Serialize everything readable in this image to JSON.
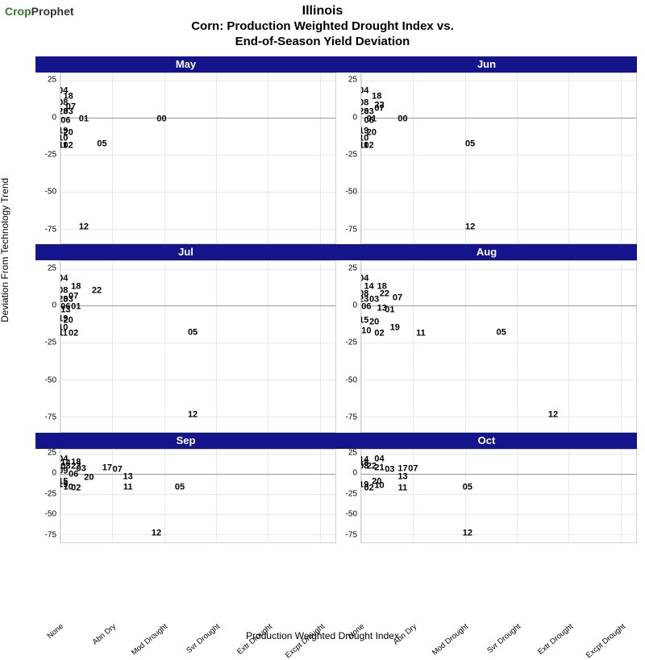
{
  "logo": {
    "part1": "Crop",
    "part2": "Prophet"
  },
  "title": {
    "line1": "Illinois",
    "line2": "Corn: Production Weighted Drought Index vs.",
    "line3": "End-of-Season Yield Deviation"
  },
  "axes": {
    "y_label": "Deviation From Technology Trend",
    "x_label": "Production Weighted Drought Index",
    "y_ticks": [
      25,
      0,
      -25,
      -50,
      -75
    ],
    "y_range": [
      -85,
      30
    ],
    "x_categories": [
      "None",
      "Abn Dry",
      "Mod Drought",
      "Svr Drought",
      "Extr Drought",
      "Excpt Drought"
    ],
    "x_range": [
      0,
      5.3
    ]
  },
  "style": {
    "strip_bg": "#14148c",
    "strip_fg": "#ffffff",
    "grid_color": "#e8e8e8",
    "zero_line": "#999999",
    "point_color": "#000000",
    "point_fontsize": 11,
    "background": "#ffffff"
  },
  "facets": [
    {
      "label": "May",
      "last_row": false,
      "points": [
        {
          "lbl": "04",
          "x": 0.05,
          "y": 18
        },
        {
          "lbl": "18",
          "x": 0.15,
          "y": 14
        },
        {
          "lbl": "08",
          "x": 0.05,
          "y": 10
        },
        {
          "lbl": "07",
          "x": 0.2,
          "y": 7
        },
        {
          "lbl": "23",
          "x": 0.05,
          "y": 4
        },
        {
          "lbl": "03",
          "x": 0.15,
          "y": 4
        },
        {
          "lbl": "06",
          "x": 0.1,
          "y": -2
        },
        {
          "lbl": "01",
          "x": 0.45,
          "y": -1
        },
        {
          "lbl": "00",
          "x": 1.95,
          "y": -1
        },
        {
          "lbl": "19",
          "x": 0.05,
          "y": -9
        },
        {
          "lbl": "20",
          "x": 0.15,
          "y": -10
        },
        {
          "lbl": "10",
          "x": 0.05,
          "y": -14
        },
        {
          "lbl": "11",
          "x": 0.05,
          "y": -19
        },
        {
          "lbl": "02",
          "x": 0.15,
          "y": -19
        },
        {
          "lbl": "05",
          "x": 0.8,
          "y": -18
        },
        {
          "lbl": "12",
          "x": 0.45,
          "y": -74
        }
      ]
    },
    {
      "label": "Jun",
      "last_row": false,
      "points": [
        {
          "lbl": "04",
          "x": 0.05,
          "y": 18
        },
        {
          "lbl": "18",
          "x": 0.3,
          "y": 14
        },
        {
          "lbl": "08",
          "x": 0.05,
          "y": 10
        },
        {
          "lbl": "22",
          "x": 0.35,
          "y": 8
        },
        {
          "lbl": "07",
          "x": 0.35,
          "y": 6
        },
        {
          "lbl": "23",
          "x": 0.05,
          "y": 4
        },
        {
          "lbl": "03",
          "x": 0.15,
          "y": 4
        },
        {
          "lbl": "06",
          "x": 0.15,
          "y": -2
        },
        {
          "lbl": "01",
          "x": 0.2,
          "y": -1
        },
        {
          "lbl": "00",
          "x": 0.8,
          "y": -1
        },
        {
          "lbl": "19",
          "x": 0.05,
          "y": -9
        },
        {
          "lbl": "20",
          "x": 0.2,
          "y": -10
        },
        {
          "lbl": "10",
          "x": 0.05,
          "y": -14
        },
        {
          "lbl": "11",
          "x": 0.05,
          "y": -19
        },
        {
          "lbl": "02",
          "x": 0.15,
          "y": -19
        },
        {
          "lbl": "05",
          "x": 2.1,
          "y": -18
        },
        {
          "lbl": "12",
          "x": 2.1,
          "y": -74
        }
      ]
    },
    {
      "label": "Jul",
      "last_row": false,
      "points": [
        {
          "lbl": "04",
          "x": 0.05,
          "y": 18
        },
        {
          "lbl": "18",
          "x": 0.3,
          "y": 13
        },
        {
          "lbl": "08",
          "x": 0.05,
          "y": 10
        },
        {
          "lbl": "22",
          "x": 0.7,
          "y": 10
        },
        {
          "lbl": "07",
          "x": 0.25,
          "y": 6
        },
        {
          "lbl": "23",
          "x": 0.05,
          "y": 4
        },
        {
          "lbl": "03",
          "x": 0.15,
          "y": 4
        },
        {
          "lbl": "06",
          "x": 0.1,
          "y": -1
        },
        {
          "lbl": "13",
          "x": 0.1,
          "y": -3
        },
        {
          "lbl": "01",
          "x": 0.3,
          "y": -1
        },
        {
          "lbl": "19",
          "x": 0.05,
          "y": -9
        },
        {
          "lbl": "20",
          "x": 0.15,
          "y": -10
        },
        {
          "lbl": "10",
          "x": 0.05,
          "y": -15
        },
        {
          "lbl": "11",
          "x": 0.05,
          "y": -19
        },
        {
          "lbl": "02",
          "x": 0.25,
          "y": -19
        },
        {
          "lbl": "05",
          "x": 2.55,
          "y": -18
        },
        {
          "lbl": "12",
          "x": 2.55,
          "y": -74
        }
      ]
    },
    {
      "label": "Aug",
      "last_row": false,
      "points": [
        {
          "lbl": "04",
          "x": 0.05,
          "y": 18
        },
        {
          "lbl": "14",
          "x": 0.15,
          "y": 13
        },
        {
          "lbl": "18",
          "x": 0.4,
          "y": 13
        },
        {
          "lbl": "08",
          "x": 0.05,
          "y": 8
        },
        {
          "lbl": "22",
          "x": 0.45,
          "y": 8
        },
        {
          "lbl": "23",
          "x": 0.05,
          "y": 4
        },
        {
          "lbl": "03",
          "x": 0.25,
          "y": 4
        },
        {
          "lbl": "07",
          "x": 0.7,
          "y": 5
        },
        {
          "lbl": "06",
          "x": 0.1,
          "y": -1
        },
        {
          "lbl": "13",
          "x": 0.4,
          "y": -2
        },
        {
          "lbl": "01",
          "x": 0.55,
          "y": -3
        },
        {
          "lbl": "15",
          "x": 0.05,
          "y": -10
        },
        {
          "lbl": "20",
          "x": 0.25,
          "y": -11
        },
        {
          "lbl": "10",
          "x": 0.1,
          "y": -17
        },
        {
          "lbl": "19",
          "x": 0.65,
          "y": -15
        },
        {
          "lbl": "02",
          "x": 0.35,
          "y": -19
        },
        {
          "lbl": "11",
          "x": 1.15,
          "y": -19
        },
        {
          "lbl": "05",
          "x": 2.7,
          "y": -18
        },
        {
          "lbl": "12",
          "x": 3.7,
          "y": -74
        }
      ]
    },
    {
      "label": "Sep",
      "last_row": true,
      "points": [
        {
          "lbl": "04",
          "x": 0.05,
          "y": 18
        },
        {
          "lbl": "18",
          "x": 0.3,
          "y": 14
        },
        {
          "lbl": "14",
          "x": 0.1,
          "y": 13
        },
        {
          "lbl": "08",
          "x": 0.1,
          "y": 9
        },
        {
          "lbl": "22",
          "x": 0.3,
          "y": 9
        },
        {
          "lbl": "03",
          "x": 0.4,
          "y": 6
        },
        {
          "lbl": "17",
          "x": 0.9,
          "y": 7
        },
        {
          "lbl": "07",
          "x": 1.1,
          "y": 5
        },
        {
          "lbl": "09",
          "x": 0.05,
          "y": 3
        },
        {
          "lbl": "06",
          "x": 0.25,
          "y": -1
        },
        {
          "lbl": "20",
          "x": 0.55,
          "y": -5
        },
        {
          "lbl": "13",
          "x": 1.3,
          "y": -4
        },
        {
          "lbl": "15",
          "x": 0.05,
          "y": -10
        },
        {
          "lbl": "19",
          "x": 0.05,
          "y": -14
        },
        {
          "lbl": "10",
          "x": 0.15,
          "y": -17
        },
        {
          "lbl": "02",
          "x": 0.3,
          "y": -18
        },
        {
          "lbl": "11",
          "x": 1.3,
          "y": -17
        },
        {
          "lbl": "05",
          "x": 2.3,
          "y": -17
        },
        {
          "lbl": "12",
          "x": 1.85,
          "y": -74
        }
      ]
    },
    {
      "label": "Oct",
      "last_row": true,
      "points": [
        {
          "lbl": "14",
          "x": 0.05,
          "y": 17
        },
        {
          "lbl": "04",
          "x": 0.35,
          "y": 18
        },
        {
          "lbl": "18",
          "x": 0.05,
          "y": 13
        },
        {
          "lbl": "08",
          "x": 0.05,
          "y": 9
        },
        {
          "lbl": "22",
          "x": 0.2,
          "y": 9
        },
        {
          "lbl": "21",
          "x": 0.35,
          "y": 7
        },
        {
          "lbl": "03",
          "x": 0.55,
          "y": 5
        },
        {
          "lbl": "17",
          "x": 0.8,
          "y": 6
        },
        {
          "lbl": "07",
          "x": 1.0,
          "y": 6
        },
        {
          "lbl": "13",
          "x": 0.8,
          "y": -4
        },
        {
          "lbl": "20",
          "x": 0.3,
          "y": -10
        },
        {
          "lbl": "19",
          "x": 0.05,
          "y": -14
        },
        {
          "lbl": "10",
          "x": 0.35,
          "y": -15
        },
        {
          "lbl": "02",
          "x": 0.15,
          "y": -18
        },
        {
          "lbl": "11",
          "x": 0.8,
          "y": -18
        },
        {
          "lbl": "05",
          "x": 2.05,
          "y": -17
        },
        {
          "lbl": "12",
          "x": 2.05,
          "y": -74
        }
      ]
    }
  ]
}
